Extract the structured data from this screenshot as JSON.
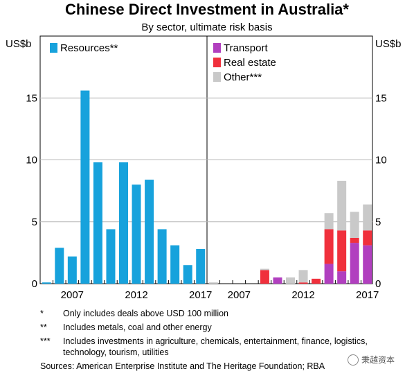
{
  "chart_data": {
    "type": "bar",
    "title": "Chinese Direct Investment in Australia*",
    "subtitle": "By sector, ultimate risk basis",
    "unit_left": "US$b",
    "unit_right": "US$b",
    "ylim": [
      0,
      20
    ],
    "yticks": [
      "0",
      "5",
      "10",
      "15"
    ],
    "x_years": [
      2005,
      2006,
      2007,
      2008,
      2009,
      2010,
      2011,
      2012,
      2013,
      2014,
      2015,
      2016,
      2017
    ],
    "xtick_labels": [
      "2007",
      "2012",
      "2017"
    ],
    "panels": [
      {
        "series": [
          {
            "name": "Resources**",
            "color": "#17a2dc",
            "values": [
              0.1,
              2.9,
              2.2,
              15.6,
              9.8,
              4.4,
              9.8,
              8.0,
              8.4,
              4.4,
              3.1,
              1.5,
              2.8
            ]
          }
        ]
      },
      {
        "series": [
          {
            "name": "Transport",
            "color": "#b13fbf",
            "values": [
              0,
              0,
              0,
              0,
              0,
              0.5,
              0,
              0,
              0,
              1.6,
              1.0,
              3.3,
              3.1
            ]
          },
          {
            "name": "Real estate",
            "color": "#f0303c",
            "values": [
              0,
              0,
              0,
              0,
              1.1,
              0,
              0,
              0.1,
              0.4,
              2.8,
              3.3,
              0.4,
              1.2
            ]
          },
          {
            "name": "Other***",
            "color": "#c9c9c9",
            "values": [
              0.1,
              0,
              0,
              0,
              0.1,
              0,
              0.5,
              1.0,
              0,
              1.3,
              4.0,
              2.1,
              2.1
            ]
          }
        ]
      }
    ]
  },
  "notes": [
    {
      "mark": "*",
      "text": "Only includes deals above USD 100 million"
    },
    {
      "mark": "**",
      "text": "Includes metals, coal and other energy"
    },
    {
      "mark": "***",
      "text": "Includes investments in agriculture, chemicals, entertainment, finance, logistics, technology, tourism, utilities"
    }
  ],
  "sources": "Sources:   American Enterprise Institute and The Heritage Foundation; RBA",
  "watermark": "秉越资本"
}
